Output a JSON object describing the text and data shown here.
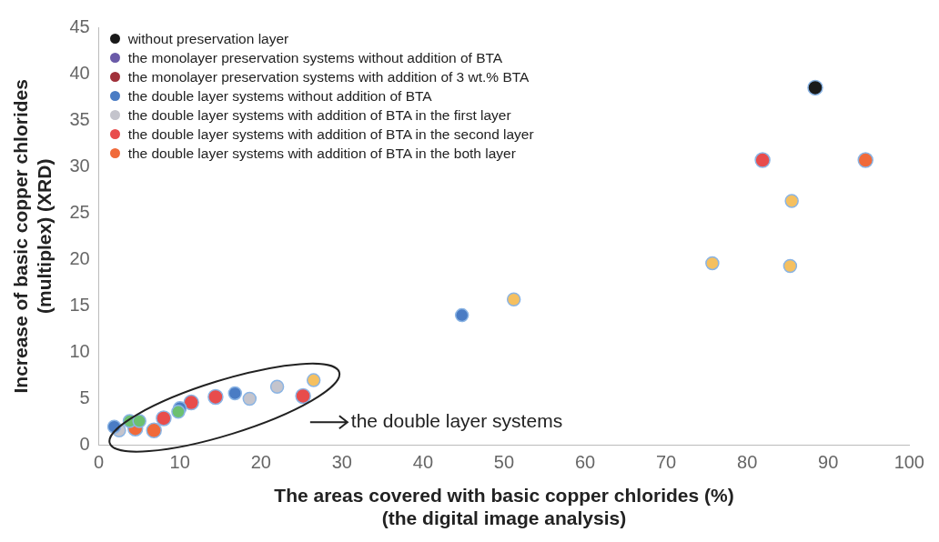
{
  "chart_data": {
    "type": "scatter",
    "xlabel": "The areas covered with basic copper chlorides (%)\n(the digital image analysis)",
    "ylabel": "Increase of basic copper chlorides\n(multiplex) (XRD)",
    "xlim": [
      0,
      100
    ],
    "xticks": [
      0,
      10,
      20,
      30,
      40,
      50,
      60,
      70,
      80,
      90,
      100
    ],
    "ylim": [
      0,
      45
    ],
    "yticks": [
      0,
      5,
      10,
      15,
      20,
      25,
      30,
      35,
      40,
      45
    ],
    "grid": false,
    "legend": "top left",
    "marker": "circle",
    "annotations": [
      "the double layer systems"
    ],
    "series": [
      {
        "name": "without preservation layer",
        "color": "#1a1a1a",
        "x": [
          88.4
        ],
        "values": [
          38.5
        ]
      },
      {
        "name": "the monolayer preservation systems without addition of BTA",
        "color": "#6a5aa8"
      },
      {
        "name": "the monolayer preservation systems with addition of 3 wt.% BTA",
        "color": "#a0303a"
      },
      {
        "name": "the double layer systems without addition of BTA",
        "color": "#4a7cc4",
        "x": [
          44.8,
          16.8,
          10.0,
          1.9
        ],
        "values": [
          14,
          5.6,
          4,
          2
        ]
      },
      {
        "name": "the double layer systems with addition of BTA in the first layer",
        "color": "#c4c4cc",
        "x": [
          22.0,
          18.6,
          2.5
        ],
        "values": [
          6.3,
          5,
          1.6
        ]
      },
      {
        "name": "the double layer systems with addition of BTA in the second layer",
        "color": "#e84c4c",
        "x": [
          81.9,
          25.2,
          14.4,
          11.4,
          8.0
        ],
        "values": [
          30.7,
          5.3,
          5.2,
          4.6,
          2.9
        ]
      },
      {
        "name": "the double layer systems with addition of BTA in the both layer",
        "color": "#f06a3a",
        "x": [
          94.6,
          4.5,
          6.8
        ],
        "values": [
          30.7,
          1.8,
          1.6
        ]
      },
      {
        "color": "#f5c060",
        "x": [
          85.5,
          75.7,
          85.3,
          51.2,
          26.5
        ],
        "values": [
          26.3,
          19.6,
          19.3,
          15.7,
          7
        ]
      },
      {
        "color": "#6cc070",
        "x": [
          3.8,
          5.0,
          9.8
        ],
        "values": [
          2.6,
          2.6,
          3.6
        ]
      }
    ]
  }
}
